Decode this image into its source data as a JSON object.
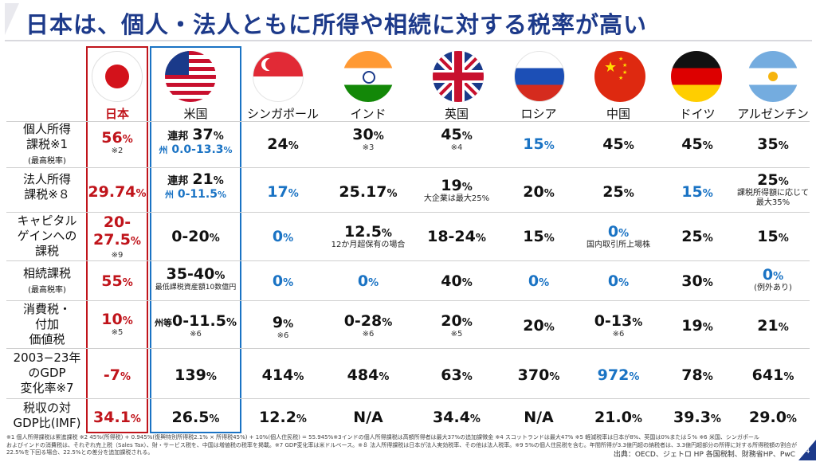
{
  "title": "日本は、個人・法人ともに所得や相続に対する税率が高い",
  "countries": [
    "日本",
    "米国",
    "シンガポール",
    "インド",
    "英国",
    "ロシア",
    "中国",
    "ドイツ",
    "アルゼンチン"
  ],
  "rows": [
    {
      "label1": "個人所得",
      "label2": "課税※1",
      "label3": "(最高税率)"
    },
    {
      "label1": "法人所得",
      "label2": "課税※８"
    },
    {
      "label1": "キャピタル",
      "label2": "ゲインへの",
      "label3": "課税"
    },
    {
      "label1": "相続課税",
      "label2": "(最高税率)"
    },
    {
      "label1": "消費税・",
      "label2": "付加",
      "label3": "価値税"
    },
    {
      "label1": "2003−23年",
      "label2": "のGDP",
      "label3": "変化率※7"
    },
    {
      "label1": "税収の対",
      "label2": "GDP比(IMF)"
    }
  ],
  "cells": {
    "r1": {
      "jp": "56",
      "jp_note": "※2",
      "us_a_pre": "連邦",
      "us_a": "37",
      "us_b_pre": "州",
      "us_b": "0.0-13.3",
      "sg": "24",
      "in": "30",
      "in_note": "※3",
      "uk": "45",
      "uk_note": "※4",
      "ru": "15",
      "cn": "45",
      "de": "45",
      "ar": "35"
    },
    "r2": {
      "jp": "29.74",
      "us_a_pre": "連邦",
      "us_a": "21",
      "us_b_pre": "州",
      "us_b": "0-11.5",
      "sg": "17",
      "in": "25.17",
      "uk": "19",
      "uk_sub": "大企業は最大25%",
      "ru": "20",
      "cn": "25",
      "de": "15",
      "ar": "25",
      "ar_sub1": "課税所得額に応じて",
      "ar_sub2": "最大35%"
    },
    "r3": {
      "jp_a": "20-",
      "jp_b": "27.5",
      "jp_note": "※9",
      "us": "0-20",
      "sg": "0",
      "in": "12.5",
      "in_sub": "12か月超保有の場合",
      "uk": "18-24",
      "ru": "15",
      "cn": "0",
      "cn_sub": "国内取引所上場株",
      "de": "25",
      "ar": "15"
    },
    "r4": {
      "jp": "55",
      "us": "35-40",
      "us_sub": "最低課税資産額10数億円",
      "sg": "0",
      "in": "0",
      "uk": "40",
      "ru": "0",
      "cn": "0",
      "de": "30",
      "ar": "0",
      "ar_sub": "(例外あり)"
    },
    "r5": {
      "jp": "10",
      "jp_note": "※5",
      "us_pre": "州等",
      "us": "0-11.5",
      "us_note": "※6",
      "sg": "9",
      "sg_note": "※6",
      "in": "0-28",
      "in_note": "※6",
      "uk": "20",
      "uk_note": "※5",
      "ru": "20",
      "cn": "0-13",
      "cn_note": "※6",
      "de": "19",
      "ar": "21"
    },
    "r6": {
      "jp": "-7",
      "us": "139",
      "sg": "414",
      "in": "484",
      "uk": "63",
      "ru": "370",
      "cn": "972",
      "de": "78",
      "ar": "641"
    },
    "r7": {
      "jp": "34.1",
      "us": "26.5",
      "sg": "12.2",
      "in": "N/A",
      "uk": "34.4",
      "ru": "N/A",
      "cn": "21.0",
      "de": "39.3",
      "ar": "29.0"
    }
  },
  "unit_pct": "%",
  "footnote1": "※1 個人所得課税は累進課税 ※2 45%(所得税) + 0.945%(復興特別所得税2.1% × 所得税45%) + 10%(個人住民税) = 55.945%※3インドの個人所得課税は高額所得者は最大37%の追加課徴金 ※4 スコットランドは最大47% ※5 軽減税率は日本が8%、英国は0%または５% ※6 米国、シンガポール",
  "footnote2": "およびインドの消費税は、それぞれ売上税（Sales Tax）、財・サービス税を、中国は増値税の税率を掲載。※7 GDP変化率は米ドルベース。※８ 法人所得課税は日本が法人実効税率、その他は法人税率。※9 5%の個人住民税を含む。年間所得が3.3億円超の納税者は、3.3億円超部分の所得に対する所得税額の割合が",
  "footnote3": "22.5%を下回る場合、22.5%との差分を追加課税される。",
  "source": "出典：OECD、ジェトロ HP 各国税制、財務省HP、PwC",
  "page_number": "4"
}
